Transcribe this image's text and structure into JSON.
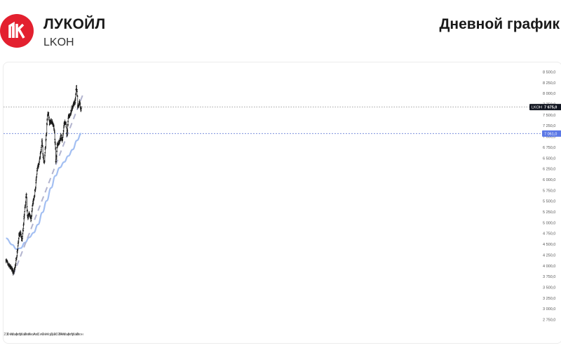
{
  "header": {
    "company_name": "ЛУКОЙЛ",
    "ticker": "LKOH",
    "chart_kind": "Дневной график",
    "logo_color": "#e3202f"
  },
  "chart_data": {
    "type": "candlestick",
    "ylim": [
      2750,
      8600
    ],
    "y_ticks": [
      "8 500,0",
      "8 250,0",
      "8 000,0",
      "7 750,0",
      "7 500,0",
      "7 250,0",
      "7 000,0",
      "6 750,0",
      "6 500,0",
      "6 250,0",
      "6 000,0",
      "5 750,0",
      "5 500,0",
      "5 250,0",
      "5 000,0",
      "4 750,0",
      "4 500,0",
      "4 250,0",
      "4 000,0",
      "3 750,0",
      "3 500,0",
      "3 250,0",
      "3 000,0",
      "2 750,0"
    ],
    "x_ticks": [
      "23",
      "Фев",
      "Мар",
      "Апр",
      "Май",
      "Июн",
      "Июл",
      "Авг",
      "Сен",
      "Окт",
      "Ноя",
      "Дек",
      "2024",
      "Фев",
      "Мар",
      "Апр",
      "Май",
      "Июн"
    ],
    "last_price": {
      "label": "LKOH",
      "value": "7 675,0",
      "numeric": 7675
    },
    "ma_value": {
      "value": "7 061,0",
      "numeric": 7061
    },
    "price_path": [
      [
        "2023-01-02",
        4120
      ],
      [
        "2023-01-18",
        4000
      ],
      [
        "2023-02-01",
        3960
      ],
      [
        "2023-02-15",
        3920
      ],
      [
        "2023-02-22",
        3800
      ],
      [
        "2023-03-06",
        3950
      ],
      [
        "2023-03-20",
        4250
      ],
      [
        "2023-04-03",
        4700
      ],
      [
        "2023-04-14",
        4750
      ],
      [
        "2023-04-24",
        4550
      ],
      [
        "2023-05-05",
        4950
      ],
      [
        "2023-05-17",
        5400
      ],
      [
        "2023-05-25",
        5650
      ],
      [
        "2023-06-02",
        5100
      ],
      [
        "2023-06-15",
        5200
      ],
      [
        "2023-06-26",
        5050
      ],
      [
        "2023-07-07",
        5400
      ],
      [
        "2023-07-21",
        5600
      ],
      [
        "2023-08-02",
        6000
      ],
      [
        "2023-08-10",
        6250
      ],
      [
        "2023-08-21",
        6350
      ],
      [
        "2023-09-04",
        6650
      ],
      [
        "2023-09-12",
        6900
      ],
      [
        "2023-09-20",
        6500
      ],
      [
        "2023-09-28",
        6400
      ],
      [
        "2023-10-10",
        6950
      ],
      [
        "2023-10-20",
        7450
      ],
      [
        "2023-10-27",
        7550
      ],
      [
        "2023-11-03",
        7300
      ],
      [
        "2023-11-15",
        7350
      ],
      [
        "2023-11-25",
        7300
      ],
      [
        "2023-12-05",
        7200
      ],
      [
        "2023-12-14",
        6800
      ],
      [
        "2023-12-18",
        6400
      ],
      [
        "2023-12-28",
        6800
      ],
      [
        "2024-01-10",
        6850
      ],
      [
        "2024-01-22",
        7000
      ],
      [
        "2024-02-02",
        6900
      ],
      [
        "2024-02-15",
        7300
      ],
      [
        "2024-02-26",
        7300
      ],
      [
        "2024-03-06",
        7000
      ],
      [
        "2024-03-15",
        7450
      ],
      [
        "2024-03-28",
        7500
      ],
      [
        "2024-04-10",
        7650
      ],
      [
        "2024-04-22",
        7750
      ],
      [
        "2024-05-02",
        7800
      ],
      [
        "2024-05-10",
        8150
      ],
      [
        "2024-05-15",
        8050
      ],
      [
        "2024-05-20",
        7700
      ],
      [
        "2024-05-29",
        7750
      ],
      [
        "2024-06-04",
        7800
      ],
      [
        "2024-06-10",
        7600
      ],
      [
        "2024-06-14",
        7675
      ]
    ],
    "moving_average": [
      [
        "2023-01-02",
        4630
      ],
      [
        "2023-02-15",
        4480
      ],
      [
        "2023-03-15",
        4380
      ],
      [
        "2023-04-15",
        4400
      ],
      [
        "2023-05-15",
        4530
      ],
      [
        "2023-06-15",
        4650
      ],
      [
        "2023-07-15",
        4760
      ],
      [
        "2023-08-15",
        4950
      ],
      [
        "2023-09-15",
        5230
      ],
      [
        "2023-10-15",
        5500
      ],
      [
        "2023-11-15",
        5800
      ],
      [
        "2023-12-15",
        6080
      ],
      [
        "2024-01-15",
        6270
      ],
      [
        "2024-02-15",
        6400
      ],
      [
        "2024-03-15",
        6540
      ],
      [
        "2024-04-15",
        6690
      ],
      [
        "2024-05-15",
        6900
      ],
      [
        "2024-06-14",
        7061
      ]
    ],
    "trendline": [
      [
        "2023-02-22",
        3780
      ],
      [
        "2024-06-25",
        7960
      ]
    ]
  },
  "colors": {
    "candle": "#1a1a1a",
    "moving_average": "#a3bff2",
    "trendline": "#b2b4cf",
    "price_level_line": "#888888",
    "ma_level_line": "#7b8fdb",
    "price_tag": "#131722",
    "ma_tag": "#5b78e6"
  }
}
